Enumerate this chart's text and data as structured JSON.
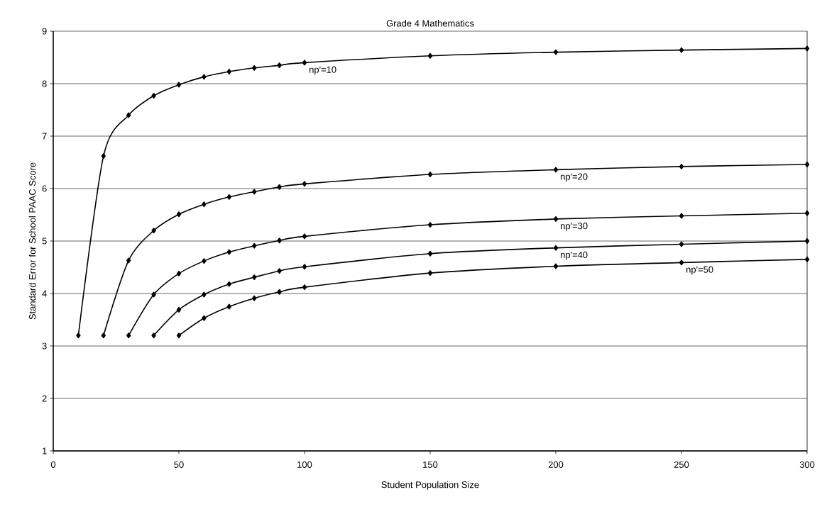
{
  "chart_data": {
    "type": "line",
    "title": "Grade 4 Mathematics",
    "xlabel": "Student Population Size",
    "ylabel": "Standard Error for School PAAC Score",
    "xlim": [
      0,
      300
    ],
    "xticks": [
      0,
      50,
      100,
      150,
      200,
      250,
      300
    ],
    "ylim": [
      1,
      9
    ],
    "yticks": [
      1,
      2,
      3,
      4,
      5,
      6,
      7,
      8,
      9
    ],
    "grid": "y",
    "legend": false,
    "marker": "diamond",
    "line_style": "solid",
    "series": [
      {
        "name": "np'=10",
        "color": "#000000",
        "x": [
          10,
          20,
          30,
          40,
          50,
          60,
          70,
          80,
          90,
          100,
          150,
          200,
          250,
          300
        ],
        "values": [
          3.2,
          6.62,
          7.4,
          7.77,
          7.98,
          8.13,
          8.23,
          8.3,
          8.35,
          8.4,
          8.53,
          8.6,
          8.64,
          8.67
        ]
      },
      {
        "name": "np'=20",
        "color": "#000000",
        "x": [
          20,
          30,
          40,
          50,
          60,
          70,
          80,
          90,
          100,
          150,
          200,
          250,
          300
        ],
        "values": [
          3.2,
          4.63,
          5.2,
          5.51,
          5.7,
          5.84,
          5.94,
          6.03,
          6.09,
          6.27,
          6.36,
          6.42,
          6.46
        ]
      },
      {
        "name": "np'=30",
        "color": "#000000",
        "x": [
          30,
          40,
          50,
          60,
          70,
          80,
          90,
          100,
          150,
          200,
          250,
          300
        ],
        "values": [
          3.2,
          3.98,
          4.38,
          4.62,
          4.79,
          4.91,
          5.01,
          5.09,
          5.31,
          5.42,
          5.48,
          5.53
        ]
      },
      {
        "name": "np'=40",
        "color": "#000000",
        "x": [
          40,
          50,
          60,
          70,
          80,
          90,
          100,
          150,
          200,
          250,
          300
        ],
        "values": [
          3.2,
          3.69,
          3.98,
          4.18,
          4.31,
          4.43,
          4.51,
          4.76,
          4.87,
          4.94,
          5.0
        ]
      },
      {
        "name": "np'=50",
        "color": "#000000",
        "x": [
          50,
          60,
          70,
          80,
          90,
          100,
          150,
          200,
          250,
          300
        ],
        "values": [
          3.2,
          3.53,
          3.75,
          3.91,
          4.03,
          4.12,
          4.39,
          4.52,
          4.59,
          4.65
        ]
      }
    ]
  }
}
